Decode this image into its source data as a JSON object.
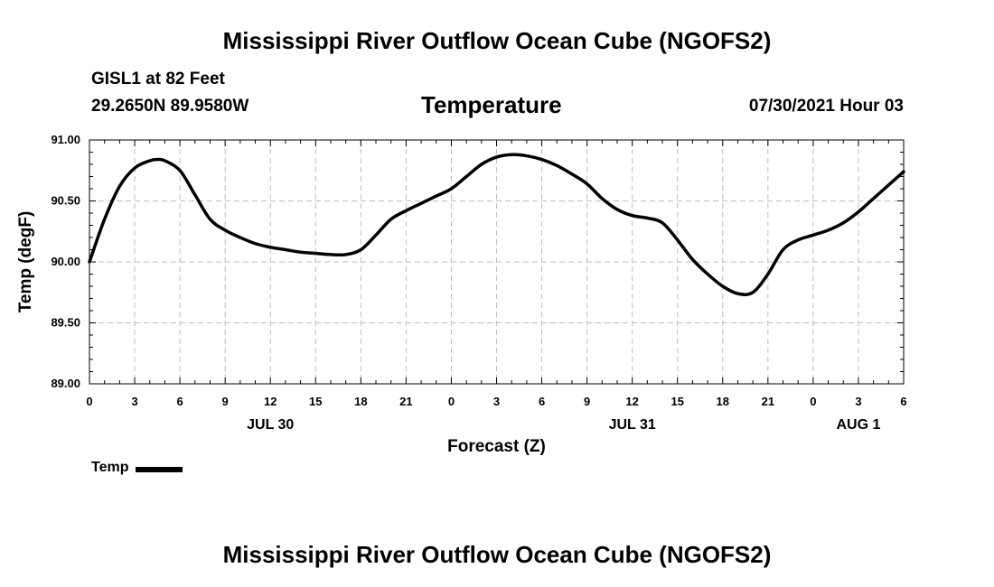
{
  "header": {
    "title": "Mississippi River Outflow Ocean Cube (NGOFS2)",
    "station": "GISL1 at 82 Feet",
    "coords": "29.2650N  89.9580W",
    "chart_title": "Temperature",
    "datetime": "07/30/2021 Hour 03"
  },
  "footer": {
    "title": "Mississippi River Outflow Ocean Cube (NGOFS2)"
  },
  "legend": {
    "label": "Temp",
    "color": "#000000"
  },
  "chart_data": {
    "type": "line",
    "title": "Temperature",
    "xlabel": "Forecast (Z)",
    "ylabel": "Temp (degF)",
    "x_unit": "hours since 2021-07-30 00Z",
    "xlim": [
      0,
      54
    ],
    "ylim": [
      89.0,
      91.0
    ],
    "y_ticks": [
      89.0,
      89.5,
      90.0,
      90.5,
      91.0
    ],
    "y_tick_labels": [
      "89.00",
      "89.50",
      "90.00",
      "90.50",
      "91.00"
    ],
    "x_ticks": [
      0,
      3,
      6,
      9,
      12,
      15,
      18,
      21,
      24,
      27,
      30,
      33,
      36,
      39,
      42,
      45,
      48,
      51,
      54
    ],
    "x_tick_labels": [
      "0",
      "3",
      "6",
      "9",
      "12",
      "15",
      "18",
      "21",
      "0",
      "3",
      "6",
      "9",
      "12",
      "15",
      "18",
      "21",
      "0",
      "3",
      "6"
    ],
    "date_labels": [
      {
        "text": "JUL 30",
        "x": 12
      },
      {
        "text": "JUL 31",
        "x": 36
      },
      {
        "text": "AUG 1",
        "x": 51
      }
    ],
    "grid": true,
    "legend_position": "bottom-left",
    "series": [
      {
        "name": "Temp",
        "color": "#000000",
        "x": [
          0,
          1,
          2,
          3,
          4,
          4.5,
          5,
          6,
          7,
          8,
          9,
          10,
          11,
          12,
          13,
          14,
          15,
          16,
          17,
          18,
          19,
          20,
          21,
          22,
          23,
          24,
          25,
          26,
          27,
          28,
          29,
          30,
          31,
          32,
          33,
          34,
          35,
          36,
          37,
          38,
          39,
          40,
          41,
          42,
          43,
          44,
          45,
          46,
          47,
          48,
          49,
          50,
          51,
          52,
          53,
          54
        ],
        "values": [
          90.0,
          90.35,
          90.62,
          90.77,
          90.83,
          90.84,
          90.83,
          90.75,
          90.55,
          90.35,
          90.26,
          90.2,
          90.15,
          90.12,
          90.1,
          90.08,
          90.07,
          90.06,
          90.06,
          90.1,
          90.22,
          90.35,
          90.42,
          90.48,
          90.54,
          90.6,
          90.7,
          90.8,
          90.86,
          90.88,
          90.87,
          90.84,
          90.79,
          90.72,
          90.64,
          90.52,
          90.43,
          90.38,
          90.36,
          90.32,
          90.18,
          90.02,
          89.9,
          89.8,
          89.74,
          89.75,
          89.9,
          90.1,
          90.18,
          90.22,
          90.26,
          90.32,
          90.41,
          90.52,
          90.63,
          90.74
        ]
      }
    ]
  }
}
